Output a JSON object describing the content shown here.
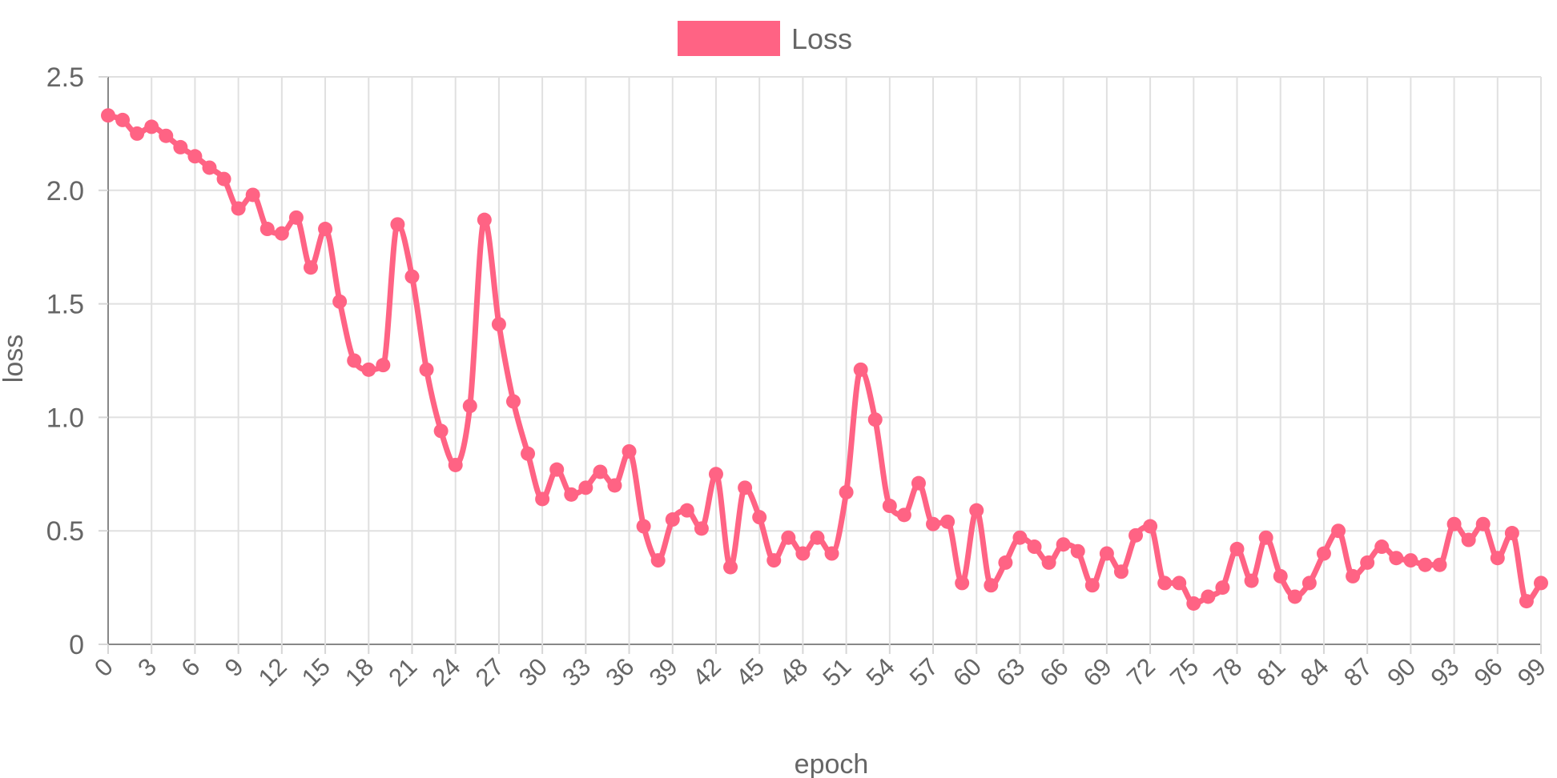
{
  "chart_data": {
    "type": "line",
    "xlabel": "epoch",
    "ylabel": "loss",
    "ylim": [
      0,
      2.5
    ],
    "yticks": [
      "0",
      "0.5",
      "1.0",
      "1.5",
      "2.0",
      "2.5"
    ],
    "xtick_step": 3,
    "grid": true,
    "legend": "top-center",
    "series": [
      {
        "name": "Loss",
        "color": "#ff6384",
        "x": [
          0,
          1,
          2,
          3,
          4,
          5,
          6,
          7,
          8,
          9,
          10,
          11,
          12,
          13,
          14,
          15,
          16,
          17,
          18,
          19,
          20,
          21,
          22,
          23,
          24,
          25,
          26,
          27,
          28,
          29,
          30,
          31,
          32,
          33,
          34,
          35,
          36,
          37,
          38,
          39,
          40,
          41,
          42,
          43,
          44,
          45,
          46,
          47,
          48,
          49,
          50,
          51,
          52,
          53,
          54,
          55,
          56,
          57,
          58,
          59,
          60,
          61,
          62,
          63,
          64,
          65,
          66,
          67,
          68,
          69,
          70,
          71,
          72,
          73,
          74,
          75,
          76,
          77,
          78,
          79,
          80,
          81,
          82,
          83,
          84,
          85,
          86,
          87,
          88,
          89,
          90,
          91,
          92,
          93,
          94,
          95,
          96,
          97,
          98,
          99
        ],
        "values": [
          2.33,
          2.31,
          2.25,
          2.28,
          2.24,
          2.19,
          2.15,
          2.1,
          2.05,
          1.92,
          1.98,
          1.83,
          1.81,
          1.88,
          1.66,
          1.83,
          1.51,
          1.25,
          1.21,
          1.23,
          1.85,
          1.62,
          1.21,
          0.94,
          0.79,
          1.05,
          1.87,
          1.41,
          1.07,
          0.84,
          0.64,
          0.77,
          0.66,
          0.69,
          0.76,
          0.7,
          0.85,
          0.52,
          0.37,
          0.55,
          0.59,
          0.51,
          0.75,
          0.34,
          0.69,
          0.56,
          0.37,
          0.47,
          0.4,
          0.47,
          0.4,
          0.67,
          1.21,
          0.99,
          0.61,
          0.57,
          0.71,
          0.53,
          0.54,
          0.27,
          0.59,
          0.26,
          0.36,
          0.47,
          0.43,
          0.36,
          0.44,
          0.41,
          0.26,
          0.4,
          0.32,
          0.48,
          0.52,
          0.27,
          0.27,
          0.18,
          0.21,
          0.25,
          0.42,
          0.28,
          0.47,
          0.3,
          0.21,
          0.27,
          0.4,
          0.5,
          0.3,
          0.36,
          0.43,
          0.38,
          0.37,
          0.35,
          0.35,
          0.53,
          0.46,
          0.53,
          0.38,
          0.49,
          0.19,
          0.27
        ]
      }
    ]
  }
}
